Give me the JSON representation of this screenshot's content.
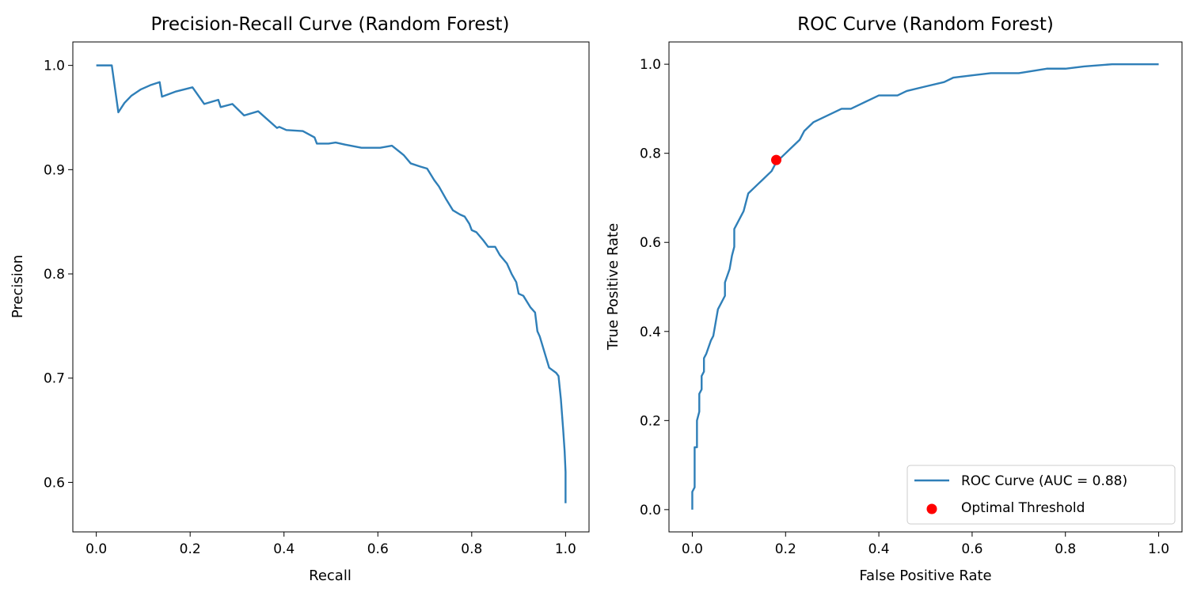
{
  "chart_data": [
    {
      "type": "line",
      "title": "Precision-Recall Curve (Random Forest)",
      "xlabel": "Recall",
      "ylabel": "Precision",
      "xlim": [
        -0.05,
        1.05
      ],
      "ylim": [
        0.5525,
        1.0225
      ],
      "xticks": [
        "0.0",
        "0.2",
        "0.4",
        "0.6",
        "0.8",
        "1.0"
      ],
      "yticks": [
        "0.6",
        "0.7",
        "0.8",
        "0.9",
        "1.0"
      ],
      "grid": false,
      "series": [
        {
          "color": "#2f7fb8",
          "points": [
            [
              0.0,
              1.0
            ],
            [
              0.033,
              1.0
            ],
            [
              0.047,
              0.955
            ],
            [
              0.06,
              0.964
            ],
            [
              0.075,
              0.971
            ],
            [
              0.095,
              0.977
            ],
            [
              0.115,
              0.981
            ],
            [
              0.135,
              0.984
            ],
            [
              0.14,
              0.97
            ],
            [
              0.17,
              0.975
            ],
            [
              0.205,
              0.979
            ],
            [
              0.23,
              0.963
            ],
            [
              0.26,
              0.967
            ],
            [
              0.265,
              0.96
            ],
            [
              0.29,
              0.963
            ],
            [
              0.315,
              0.952
            ],
            [
              0.345,
              0.956
            ],
            [
              0.385,
              0.94
            ],
            [
              0.39,
              0.941
            ],
            [
              0.405,
              0.938
            ],
            [
              0.44,
              0.937
            ],
            [
              0.465,
              0.931
            ],
            [
              0.47,
              0.925
            ],
            [
              0.495,
              0.925
            ],
            [
              0.51,
              0.926
            ],
            [
              0.53,
              0.924
            ],
            [
              0.565,
              0.921
            ],
            [
              0.585,
              0.921
            ],
            [
              0.605,
              0.921
            ],
            [
              0.63,
              0.923
            ],
            [
              0.655,
              0.914
            ],
            [
              0.67,
              0.906
            ],
            [
              0.69,
              0.903
            ],
            [
              0.705,
              0.901
            ],
            [
              0.72,
              0.89
            ],
            [
              0.73,
              0.884
            ],
            [
              0.745,
              0.872
            ],
            [
              0.76,
              0.861
            ],
            [
              0.775,
              0.857
            ],
            [
              0.785,
              0.855
            ],
            [
              0.795,
              0.848
            ],
            [
              0.8,
              0.842
            ],
            [
              0.81,
              0.84
            ],
            [
              0.825,
              0.832
            ],
            [
              0.835,
              0.826
            ],
            [
              0.85,
              0.826
            ],
            [
              0.86,
              0.818
            ],
            [
              0.875,
              0.81
            ],
            [
              0.885,
              0.8
            ],
            [
              0.895,
              0.792
            ],
            [
              0.9,
              0.781
            ],
            [
              0.91,
              0.779
            ],
            [
              0.925,
              0.768
            ],
            [
              0.935,
              0.763
            ],
            [
              0.94,
              0.745
            ],
            [
              0.945,
              0.74
            ],
            [
              0.955,
              0.725
            ],
            [
              0.965,
              0.71
            ],
            [
              0.98,
              0.705
            ],
            [
              0.985,
              0.702
            ],
            [
              0.99,
              0.68
            ],
            [
              0.995,
              0.65
            ],
            [
              0.998,
              0.63
            ],
            [
              1.0,
              0.61
            ],
            [
              1.0,
              0.58
            ]
          ]
        }
      ]
    },
    {
      "type": "line",
      "title": "ROC Curve (Random Forest)",
      "xlabel": "False Positive Rate",
      "ylabel": "True Positive Rate",
      "xlim": [
        -0.05,
        1.05
      ],
      "ylim": [
        -0.05,
        1.05
      ],
      "xticks": [
        "0.0",
        "0.2",
        "0.4",
        "0.6",
        "0.8",
        "1.0"
      ],
      "yticks": [
        "0.0",
        "0.2",
        "0.4",
        "0.6",
        "0.8",
        "1.0"
      ],
      "grid": false,
      "legend_position": "lower-right",
      "series": [
        {
          "name": "ROC Curve (AUC = 0.88)",
          "color": "#2f7fb8",
          "points": [
            [
              0.0,
              0.0
            ],
            [
              0.0,
              0.04
            ],
            [
              0.005,
              0.05
            ],
            [
              0.005,
              0.14
            ],
            [
              0.01,
              0.14
            ],
            [
              0.01,
              0.2
            ],
            [
              0.015,
              0.22
            ],
            [
              0.015,
              0.26
            ],
            [
              0.02,
              0.27
            ],
            [
              0.02,
              0.3
            ],
            [
              0.025,
              0.31
            ],
            [
              0.025,
              0.34
            ],
            [
              0.03,
              0.35
            ],
            [
              0.04,
              0.38
            ],
            [
              0.045,
              0.39
            ],
            [
              0.05,
              0.42
            ],
            [
              0.055,
              0.45
            ],
            [
              0.06,
              0.46
            ],
            [
              0.065,
              0.47
            ],
            [
              0.07,
              0.48
            ],
            [
              0.07,
              0.51
            ],
            [
              0.08,
              0.54
            ],
            [
              0.085,
              0.57
            ],
            [
              0.09,
              0.59
            ],
            [
              0.09,
              0.63
            ],
            [
              0.1,
              0.65
            ],
            [
              0.11,
              0.67
            ],
            [
              0.12,
              0.71
            ],
            [
              0.14,
              0.73
            ],
            [
              0.15,
              0.74
            ],
            [
              0.16,
              0.75
            ],
            [
              0.17,
              0.76
            ],
            [
              0.18,
              0.78
            ],
            [
              0.19,
              0.79
            ],
            [
              0.2,
              0.8
            ],
            [
              0.21,
              0.81
            ],
            [
              0.22,
              0.82
            ],
            [
              0.23,
              0.83
            ],
            [
              0.24,
              0.85
            ],
            [
              0.25,
              0.86
            ],
            [
              0.26,
              0.87
            ],
            [
              0.28,
              0.88
            ],
            [
              0.3,
              0.89
            ],
            [
              0.32,
              0.9
            ],
            [
              0.34,
              0.9
            ],
            [
              0.36,
              0.91
            ],
            [
              0.38,
              0.92
            ],
            [
              0.4,
              0.93
            ],
            [
              0.44,
              0.93
            ],
            [
              0.46,
              0.94
            ],
            [
              0.5,
              0.95
            ],
            [
              0.54,
              0.96
            ],
            [
              0.56,
              0.97
            ],
            [
              0.6,
              0.975
            ],
            [
              0.64,
              0.98
            ],
            [
              0.7,
              0.98
            ],
            [
              0.76,
              0.99
            ],
            [
              0.8,
              0.99
            ],
            [
              0.84,
              0.995
            ],
            [
              0.9,
              1.0
            ],
            [
              0.96,
              1.0
            ],
            [
              1.0,
              1.0
            ]
          ]
        },
        {
          "name": "Optimal Threshold",
          "type": "scatter",
          "color": "#ff0000",
          "points": [
            [
              0.18,
              0.785
            ]
          ]
        }
      ]
    }
  ]
}
